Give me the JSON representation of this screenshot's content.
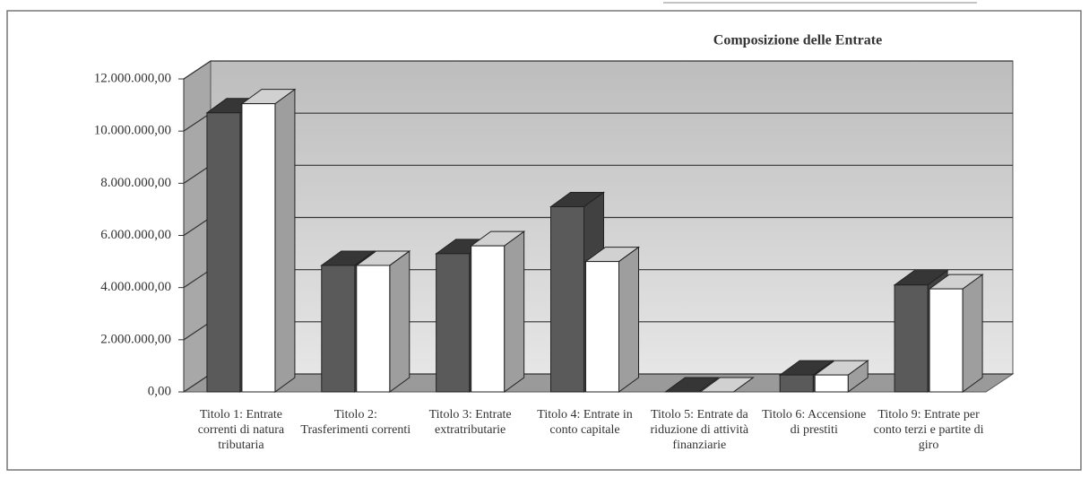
{
  "chart_data": {
    "type": "bar3d",
    "title": "Composizione delle Entrate",
    "categories": [
      "Titolo 1: Entrate correnti di natura tributaria",
      "Titolo 2: Trasferimenti correnti",
      "Titolo 3: Entrate extratributarie",
      "Titolo 4: Entrate in conto capitale",
      "Titolo 5: Entrate da riduzione di attività finanziarie",
      "Titolo 6: Accensione di prestiti",
      "Titolo 9: Entrate per conto terzi e partite di giro"
    ],
    "series": [
      {
        "color": "#5a5a5a",
        "values": [
          10700000,
          4850000,
          5300000,
          7100000,
          0,
          650000,
          4100000
        ]
      },
      {
        "color": "#ffffff",
        "values": [
          11050000,
          4850000,
          5600000,
          5000000,
          0,
          650000,
          3950000
        ]
      }
    ],
    "ylim": [
      0,
      12000000
    ],
    "yticks": [
      {
        "value": 0,
        "label": "0,00"
      },
      {
        "value": 2000000,
        "label": "2.000.000,00"
      },
      {
        "value": 4000000,
        "label": "4.000.000,00"
      },
      {
        "value": 6000000,
        "label": "6.000.000,00"
      },
      {
        "value": 8000000,
        "label": "8.000.000,00"
      },
      {
        "value": 10000000,
        "label": "10.000.000,00"
      },
      {
        "value": 12000000,
        "label": "12.000.000,00"
      }
    ],
    "grid": true
  }
}
